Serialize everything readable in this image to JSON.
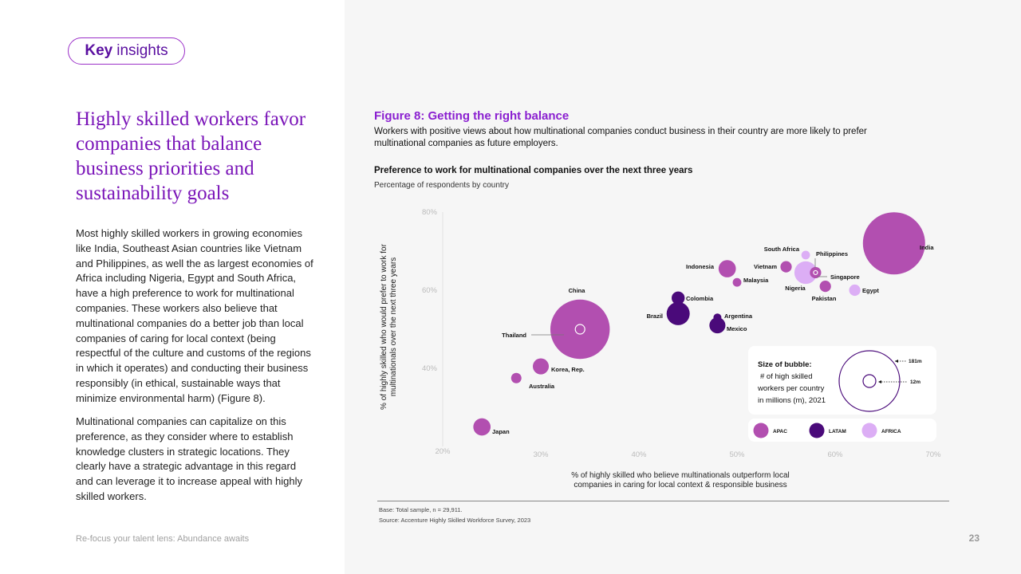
{
  "header": {
    "pill_bold": "Key",
    "pill_rest": "insights"
  },
  "left": {
    "headline": "Highly skilled workers favor companies that balance business priorities and sustainability goals",
    "para1": "Most highly skilled workers in growing economies like India, Southeast Asian countries like Vietnam and Philippines, as well the as largest economies of Africa including Nigeria, Egypt and South Africa, have a high preference to work for multinational companies. These workers also believe that multinational companies do a better job than local companies of caring for local context (being respectful of the culture and customs of the regions in which it operates) and conducting their business responsibly (in ethical, sustainable ways that minimize environmental harm) (Figure 8).",
    "para2": "Multinational companies can capitalize on this preference, as they consider where to establish knowledge clusters in strategic locations. They clearly have a strategic advantage in this regard and can leverage it to increase appeal with highly skilled workers.",
    "footer": "Re-focus your talent lens: Abundance awaits"
  },
  "figure": {
    "title": "Figure 8: Getting the right balance",
    "subtitle": "Workers with positive views about how multinational companies conduct business in their country are more likely to prefer multinational companies as future employers.",
    "chart_title": "Preference to work for multinational companies over the next three years",
    "chart_subtitle": "Percentage of respondents by country",
    "base": "Base: Total sample, n = 29,911.",
    "source": "Source: Accenture Highly Skilled Workforce Survey, 2023"
  },
  "page_number": "23",
  "chart_data": {
    "type": "scatter",
    "title": "Preference to work for multinational companies over the next three years",
    "xlabel": "% of highly skilled who believe multinationals outperform local companies in caring for local context & responsible business",
    "ylabel": "% of highly skilled who would prefer to work for multinationals over the next three years",
    "xlim": [
      20,
      70
    ],
    "ylim": [
      20,
      80
    ],
    "xticks": [
      "20%",
      "30%",
      "40%",
      "50%",
      "60%",
      "70%"
    ],
    "yticks": [
      "40%",
      "60%",
      "80%"
    ],
    "bubble_size_note": "Size of bubble: # of high skilled workers per country in millions (m), 2021",
    "size_legend": [
      "181m",
      "12m"
    ],
    "regions": [
      {
        "name": "APAC",
        "color": "#b24fb0"
      },
      {
        "name": "LATAM",
        "color": "#4a0a7a"
      },
      {
        "name": "AFRICA",
        "color": "#dcaef5"
      }
    ],
    "points": [
      {
        "country": "India",
        "x": 66,
        "y": 72,
        "size_m": 181,
        "region": "APAC"
      },
      {
        "country": "China",
        "x": 34,
        "y": 50,
        "size_m": 165,
        "region": "APAC"
      },
      {
        "country": "Indonesia",
        "x": 49,
        "y": 65.5,
        "size_m": 14,
        "region": "APAC"
      },
      {
        "country": "Vietnam",
        "x": 55,
        "y": 66,
        "size_m": 6,
        "region": "APAC"
      },
      {
        "country": "Malaysia",
        "x": 50,
        "y": 62,
        "size_m": 3.5,
        "region": "APAC"
      },
      {
        "country": "Philippines",
        "x": 58,
        "y": 64.5,
        "size_m": 6,
        "region": "APAC"
      },
      {
        "country": "Singapore",
        "x": 58,
        "y": 64.5,
        "size_m": 0.8,
        "region": "APAC"
      },
      {
        "country": "Pakistan",
        "x": 59,
        "y": 61,
        "size_m": 6,
        "region": "APAC"
      },
      {
        "country": "Thailand",
        "x": 34,
        "y": 50,
        "size_m": 3.5,
        "region": "APAC"
      },
      {
        "country": "Korea, Rep.",
        "x": 30,
        "y": 40.5,
        "size_m": 12,
        "region": "APAC"
      },
      {
        "country": "Australia",
        "x": 27.5,
        "y": 37.5,
        "size_m": 5,
        "region": "APAC"
      },
      {
        "country": "Japan",
        "x": 24,
        "y": 25,
        "size_m": 14,
        "region": "APAC"
      },
      {
        "country": "South Africa",
        "x": 57,
        "y": 69,
        "size_m": 3.5,
        "region": "AFRICA"
      },
      {
        "country": "Nigeria",
        "x": 57,
        "y": 64.5,
        "size_m": 24,
        "region": "AFRICA"
      },
      {
        "country": "Egypt",
        "x": 62,
        "y": 60,
        "size_m": 6,
        "region": "AFRICA"
      },
      {
        "country": "Colombia",
        "x": 44,
        "y": 58,
        "size_m": 8,
        "region": "LATAM"
      },
      {
        "country": "Brazil",
        "x": 44,
        "y": 54,
        "size_m": 25,
        "region": "LATAM"
      },
      {
        "country": "Argentina",
        "x": 48,
        "y": 53,
        "size_m": 3,
        "region": "LATAM"
      },
      {
        "country": "Mexico",
        "x": 48,
        "y": 51,
        "size_m": 12,
        "region": "LATAM"
      }
    ]
  }
}
